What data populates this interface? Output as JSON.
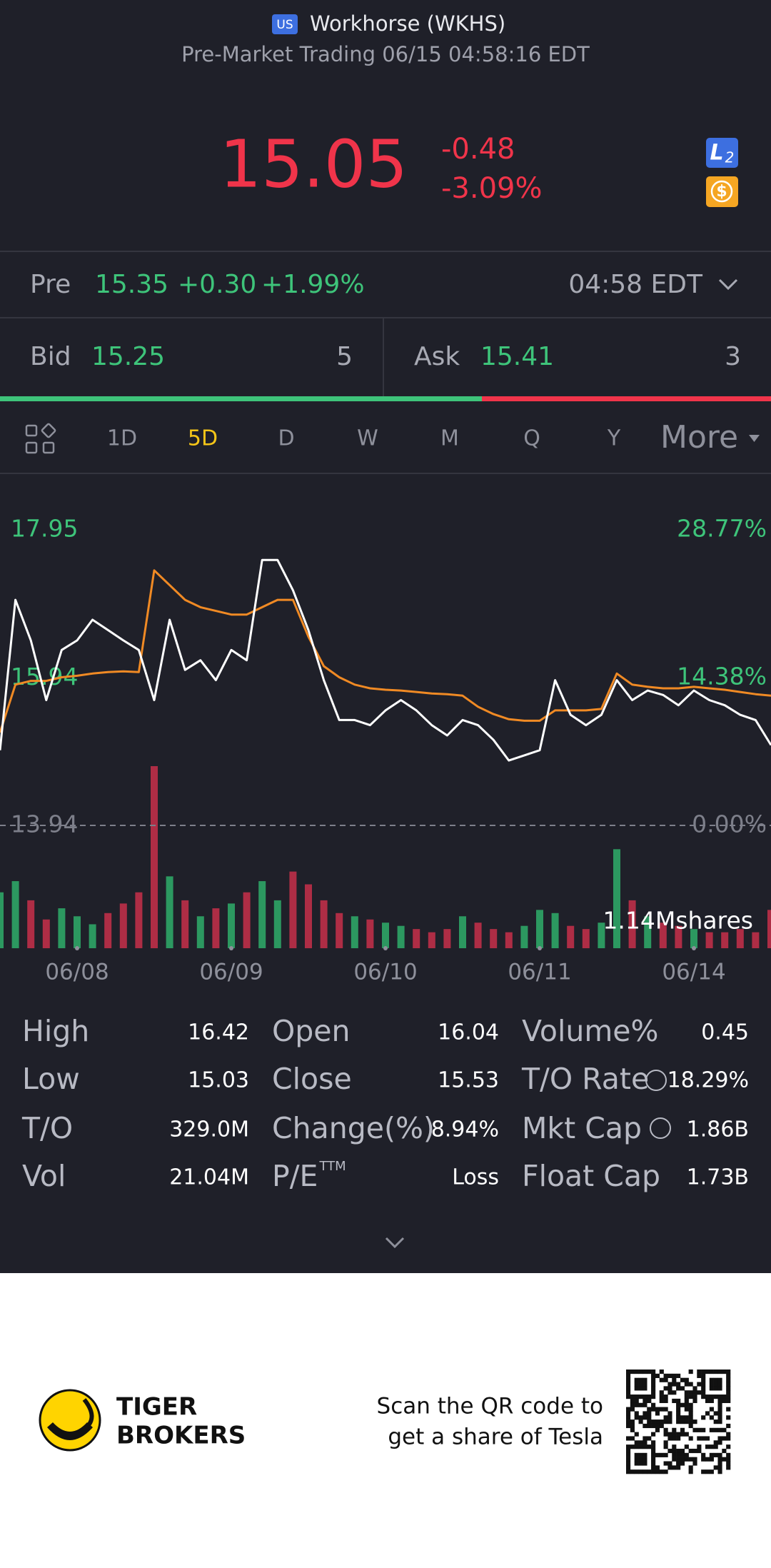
{
  "header": {
    "market_badge": "US",
    "title": "Workhorse (WKHS)",
    "subtitle": "Pre-Market Trading 06/15 04:58:16 EDT"
  },
  "quote": {
    "price": "15.05",
    "change": "-0.48",
    "change_pct": "-3.09%",
    "badge_level": "L",
    "badge_level_sub": "2",
    "badge_currency": "$"
  },
  "pre": {
    "label": "Pre",
    "price": "15.35",
    "change": "+0.30",
    "change_pct": "+1.99%",
    "time": "04:58 EDT"
  },
  "bid": {
    "label": "Bid",
    "price": "15.25",
    "size": "5"
  },
  "ask": {
    "label": "Ask",
    "price": "15.41",
    "size": "3"
  },
  "tabs": {
    "items": [
      "1D",
      "5D",
      "D",
      "W",
      "M",
      "Q",
      "Y"
    ],
    "active": 1,
    "more": "More"
  },
  "chart_data": {
    "type": "line",
    "categories": [
      null,
      null,
      null,
      null,
      null,
      "06/08",
      null,
      null,
      null,
      null,
      null,
      null,
      null,
      null,
      null,
      "06/09",
      null,
      null,
      null,
      null,
      null,
      null,
      null,
      null,
      null,
      "06/10",
      null,
      null,
      null,
      null,
      null,
      null,
      null,
      null,
      null,
      "06/11",
      null,
      null,
      null,
      null,
      null,
      null,
      null,
      null,
      null,
      "06/14",
      null,
      null,
      null,
      null,
      null
    ],
    "series": [
      {
        "name": "Price",
        "color": "#ffffff",
        "values": [
          14.96,
          17.0,
          16.45,
          15.64,
          16.32,
          16.45,
          16.73,
          16.59,
          16.45,
          16.32,
          15.64,
          16.73,
          16.05,
          16.18,
          15.91,
          16.32,
          16.18,
          17.54,
          17.54,
          17.13,
          16.59,
          15.91,
          15.37,
          15.37,
          15.3,
          15.5,
          15.64,
          15.5,
          15.3,
          15.16,
          15.37,
          15.3,
          15.1,
          14.82,
          14.89,
          14.96,
          15.91,
          15.44,
          15.3,
          15.44,
          15.91,
          15.64,
          15.77,
          15.71,
          15.57,
          15.77,
          15.64,
          15.57,
          15.44,
          15.37,
          15.03
        ]
      },
      {
        "name": "Average",
        "color": "#f08a24",
        "values": [
          15.2,
          15.85,
          15.9,
          15.9,
          15.95,
          15.97,
          16.0,
          16.02,
          16.03,
          16.02,
          17.4,
          17.2,
          17.0,
          16.9,
          16.85,
          16.8,
          16.8,
          16.9,
          17.0,
          17.0,
          16.5,
          16.1,
          15.95,
          15.85,
          15.8,
          15.78,
          15.77,
          15.75,
          15.73,
          15.72,
          15.7,
          15.55,
          15.45,
          15.38,
          15.36,
          15.36,
          15.5,
          15.5,
          15.5,
          15.52,
          16.0,
          15.85,
          15.82,
          15.8,
          15.8,
          15.82,
          15.8,
          15.78,
          15.75,
          15.72,
          15.7
        ]
      }
    ],
    "ylim": [
      13.94,
      17.95
    ],
    "yticks": [
      17.95,
      15.94,
      13.94
    ],
    "y2lim": [
      0,
      28.77
    ],
    "y2ticks": [
      {
        "value": 28.77,
        "label": "28.77%"
      },
      {
        "value": 14.38,
        "label": "14.38%"
      },
      {
        "value": 0,
        "label": "0.00%"
      }
    ],
    "volume": {
      "values": [
        0.35,
        0.42,
        0.3,
        0.18,
        0.25,
        0.2,
        0.15,
        0.22,
        0.28,
        0.35,
        1.14,
        0.45,
        0.3,
        0.2,
        0.25,
        0.28,
        0.35,
        0.42,
        0.3,
        0.48,
        0.4,
        0.3,
        0.22,
        0.2,
        0.18,
        0.16,
        0.14,
        0.12,
        0.1,
        0.12,
        0.2,
        0.16,
        0.12,
        0.1,
        0.14,
        0.24,
        0.22,
        0.14,
        0.12,
        0.16,
        0.62,
        0.3,
        0.2,
        0.16,
        0.14,
        0.12,
        0.1,
        0.1,
        0.12,
        0.1,
        0.24
      ],
      "lim": [
        0,
        1.14
      ],
      "ticks": [
        {
          "value": 1.14,
          "label": "1.14Mshares"
        }
      ],
      "up_color": "#2fae6a",
      "down_color": "#c8304a"
    }
  },
  "stats": [
    [
      {
        "label": "High",
        "value": "16.42"
      },
      {
        "label": "Open",
        "value": "16.04"
      },
      {
        "label": "Volume%",
        "value": "0.45"
      }
    ],
    [
      {
        "label": "Low",
        "value": "15.03"
      },
      {
        "label": "Close",
        "value": "15.53"
      },
      {
        "label": "T/O Rate",
        "value": "18.29%"
      }
    ],
    [
      {
        "label": "T/O",
        "value": "329.0M"
      },
      {
        "label": "Change(%)",
        "value": "8.94%"
      },
      {
        "label": "Mkt Cap",
        "value": "1.86B"
      }
    ],
    [
      {
        "label": "Vol",
        "value": "21.04M"
      },
      {
        "label": "P/E",
        "sup": "TTM",
        "value": "Loss"
      },
      {
        "label": "Float Cap",
        "value": "1.73B"
      }
    ]
  ],
  "footer": {
    "brand": [
      "TIGER",
      "BROKERS"
    ],
    "cta": [
      "Scan the QR code to",
      "get a share of Tesla"
    ]
  }
}
